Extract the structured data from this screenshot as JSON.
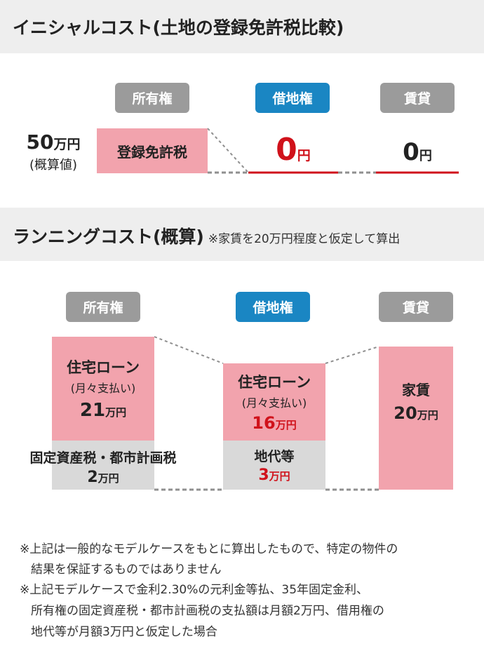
{
  "colors": {
    "owned_gray": "#9b9b9b",
    "leasehold_blue": "#1a86c3",
    "rent_gray": "#9b9b9b",
    "pink": "#f2a3ad",
    "light_gray": "#d9d9d9",
    "red": "#d0121b",
    "dashed": "#8f8f8f"
  },
  "initial": {
    "title": "イニシャルコスト(土地の登録免許税比較)",
    "columns": [
      "所有権",
      "借地権",
      "賃貸"
    ],
    "owned_amount_num": "50",
    "owned_amount_unit": "万円",
    "owned_amount_note": "(概算値)",
    "owned_box_label": "登録免許税",
    "leasehold_value_num": "0",
    "leasehold_value_unit": "円",
    "rent_value_num": "0",
    "rent_value_unit": "円"
  },
  "running": {
    "title": "ランニングコスト(概算)",
    "note": "※家賃を20万円程度と仮定して算出",
    "columns": [
      "所有権",
      "借地権",
      "賃貸"
    ],
    "owned": {
      "loan_label": "住宅ローン",
      "loan_sub": "(月々支払い)",
      "loan_num": "21",
      "loan_unit": "万円",
      "tax_label": "固定資産税・都市計画税",
      "tax_num": "2",
      "tax_unit": "万円"
    },
    "leasehold": {
      "loan_label": "住宅ローン",
      "loan_sub": "(月々支払い)",
      "loan_num": "16",
      "loan_unit": "万円",
      "rent_label": "地代等",
      "rent_num": "3",
      "rent_unit": "万円"
    },
    "rent": {
      "label": "家賃",
      "num": "20",
      "unit": "万円"
    }
  },
  "notes": [
    "※上記は一般的なモデルケースをもとに算出したもので、特定の物件の",
    "結果を保証するものではありません",
    "※上記モデルケースで金利2.30%の元利金等払、35年固定金利、",
    "所有権の固定資産税・都市計画税の支払額は月額2万円、借用権の",
    "地代等が月額3万円と仮定した場合"
  ]
}
